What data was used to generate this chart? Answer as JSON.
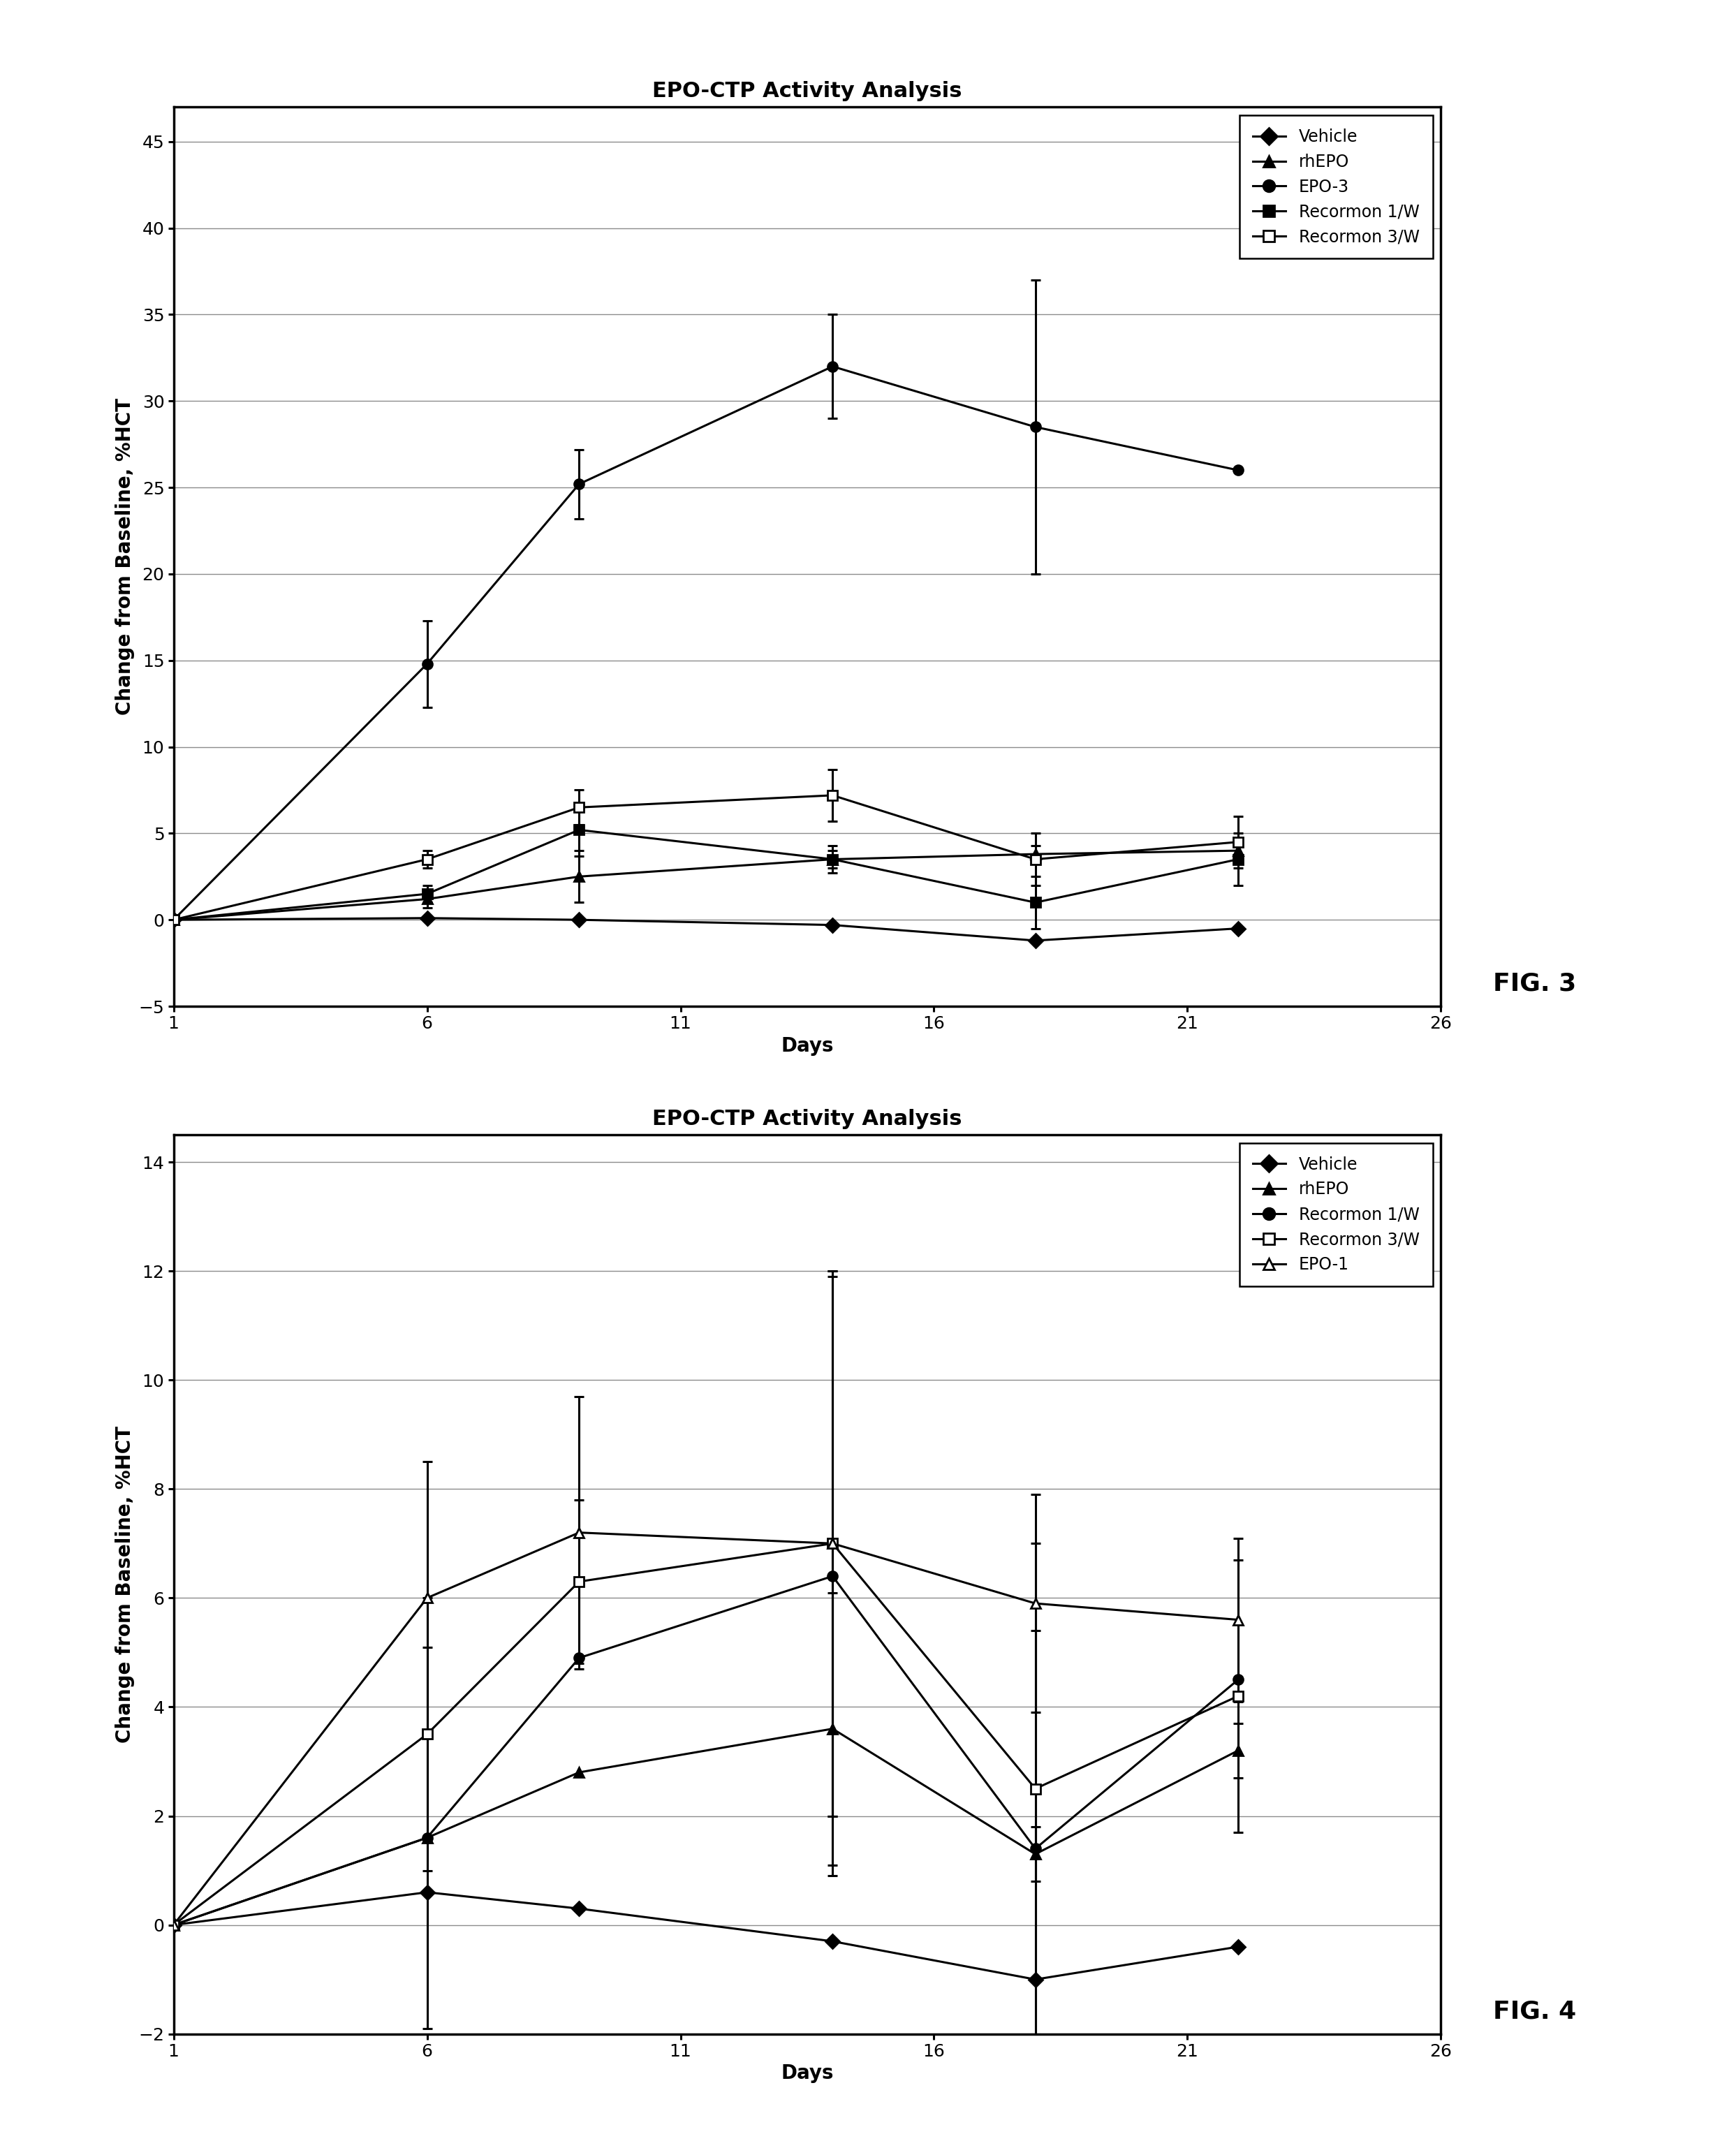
{
  "fig3": {
    "title": "EPO-CTP Activity Analysis",
    "xlabel": "Days",
    "ylabel": "Change from Baseline, %HCT",
    "xlim": [
      1,
      26
    ],
    "ylim": [
      -5,
      47
    ],
    "yticks": [
      -5,
      0,
      5,
      10,
      15,
      20,
      25,
      30,
      35,
      40,
      45
    ],
    "xticks": [
      1,
      6,
      11,
      16,
      21,
      26
    ],
    "fig_label": "FIG. 3",
    "series": [
      {
        "label": "Vehicle",
        "x": [
          1,
          6,
          9,
          14,
          18,
          22
        ],
        "y": [
          0,
          0.1,
          0.0,
          -0.3,
          -1.2,
          -0.5
        ],
        "yerr": [
          0,
          0,
          0,
          0,
          0,
          0
        ],
        "marker": "D",
        "fillstyle": "full",
        "markersize": 10
      },
      {
        "label": "rhEPO",
        "x": [
          1,
          6,
          9,
          14,
          18,
          22
        ],
        "y": [
          0,
          1.2,
          2.5,
          3.5,
          3.8,
          4.0
        ],
        "yerr": [
          0,
          0.5,
          1.5,
          0.5,
          0.5,
          0.5
        ],
        "marker": "^",
        "fillstyle": "full",
        "markersize": 10
      },
      {
        "label": "EPO-3",
        "x": [
          1,
          6,
          9,
          14,
          18,
          22
        ],
        "y": [
          0,
          14.8,
          25.2,
          32.0,
          28.5,
          26.0
        ],
        "yerr": [
          0,
          2.5,
          2.0,
          3.0,
          8.5,
          0
        ],
        "marker": "o",
        "fillstyle": "full",
        "markersize": 10
      },
      {
        "label": "Recormon 1/W",
        "x": [
          1,
          6,
          9,
          14,
          18,
          22
        ],
        "y": [
          0,
          1.5,
          5.2,
          3.5,
          1.0,
          3.5
        ],
        "yerr": [
          0,
          0.5,
          1.5,
          0.8,
          1.5,
          1.5
        ],
        "marker": "s",
        "fillstyle": "full",
        "markersize": 10
      },
      {
        "label": "Recormon 3/W",
        "x": [
          1,
          6,
          9,
          14,
          18,
          22
        ],
        "y": [
          0,
          3.5,
          6.5,
          7.2,
          3.5,
          4.5
        ],
        "yerr": [
          0,
          0.5,
          1.0,
          1.5,
          1.5,
          1.5
        ],
        "marker": "s",
        "fillstyle": "none",
        "markersize": 10
      }
    ]
  },
  "fig4": {
    "title": "EPO-CTP Activity Analysis",
    "xlabel": "Days",
    "ylabel": "Change from Baseline, %HCT",
    "xlim": [
      1,
      26
    ],
    "ylim": [
      -2,
      14.5
    ],
    "yticks": [
      -2,
      0,
      2,
      4,
      6,
      8,
      10,
      12,
      14
    ],
    "xticks": [
      1,
      6,
      11,
      16,
      21,
      26
    ],
    "fig_label": "FIG. 4",
    "series": [
      {
        "label": "Vehicle",
        "x": [
          1,
          6,
          9,
          14,
          18,
          22
        ],
        "y": [
          0,
          0.6,
          0.3,
          -0.3,
          -1.0,
          -0.4
        ],
        "yerr": [
          0,
          0,
          0,
          0,
          0,
          0
        ],
        "marker": "D",
        "fillstyle": "full",
        "markersize": 10
      },
      {
        "label": "rhEPO",
        "x": [
          1,
          6,
          9,
          14,
          18,
          22
        ],
        "y": [
          0,
          1.6,
          2.8,
          3.6,
          1.3,
          3.2
        ],
        "yerr": [
          0,
          0,
          0,
          2.5,
          0.5,
          0.5
        ],
        "marker": "^",
        "fillstyle": "full",
        "markersize": 10
      },
      {
        "label": "Recormon 1/W",
        "x": [
          1,
          6,
          9,
          14,
          18,
          22
        ],
        "y": [
          0,
          1.6,
          4.9,
          6.4,
          1.4,
          4.5
        ],
        "yerr": [
          0,
          3.5,
          0,
          5.5,
          4.0,
          0
        ],
        "marker": "o",
        "fillstyle": "full",
        "markersize": 10
      },
      {
        "label": "Recormon 3/W",
        "x": [
          1,
          6,
          9,
          14,
          18,
          22
        ],
        "y": [
          0,
          3.5,
          6.3,
          7.0,
          2.5,
          4.2
        ],
        "yerr": [
          0,
          2.5,
          1.5,
          5.0,
          4.5,
          2.5
        ],
        "marker": "s",
        "fillstyle": "none",
        "markersize": 10
      },
      {
        "label": "EPO-1",
        "x": [
          1,
          6,
          9,
          14,
          18,
          22
        ],
        "y": [
          0,
          6.0,
          7.2,
          7.0,
          5.9,
          5.6
        ],
        "yerr": [
          0,
          2.5,
          2.5,
          5.0,
          2.0,
          1.5
        ],
        "marker": "^",
        "fillstyle": "none",
        "markersize": 10
      }
    ]
  },
  "title_fontsize": 22,
  "label_fontsize": 20,
  "tick_fontsize": 18,
  "legend_fontsize": 17,
  "fig_label_fontsize": 26,
  "linewidth": 2.2,
  "spine_linewidth": 2.5,
  "markerwidth": 2.0,
  "capsize": 5,
  "grid_alpha": 0.45
}
